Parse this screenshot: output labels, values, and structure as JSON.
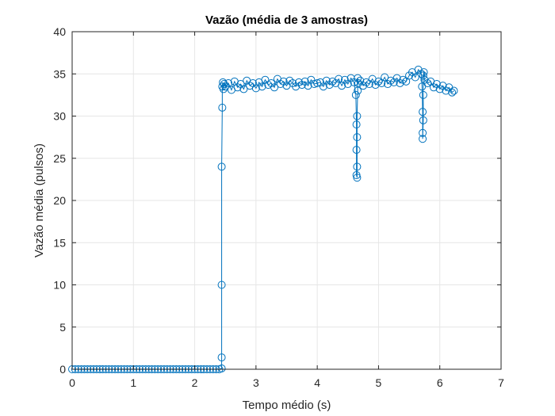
{
  "chart_data": {
    "type": "line",
    "title": "Vazão (média de 3 amostras)",
    "xlabel": "Tempo médio (s)",
    "ylabel": "Vazão média (pulsos)",
    "xlim": [
      0,
      7
    ],
    "ylim": [
      0,
      40
    ],
    "xticks": [
      "0",
      "1",
      "2",
      "3",
      "4",
      "5",
      "6",
      "7"
    ],
    "yticks": [
      "0",
      "5",
      "10",
      "15",
      "20",
      "25",
      "30",
      "35",
      "40"
    ],
    "grid": true,
    "marker": "circle",
    "series_color": "#0072BD",
    "series": [
      {
        "name": "",
        "x": [
          0.0,
          0.05,
          0.1,
          0.15,
          0.2,
          0.25,
          0.3,
          0.35,
          0.4,
          0.45,
          0.5,
          0.55,
          0.6,
          0.65,
          0.7,
          0.75,
          0.8,
          0.85,
          0.9,
          0.95,
          1.0,
          1.05,
          1.1,
          1.15,
          1.2,
          1.25,
          1.3,
          1.35,
          1.4,
          1.45,
          1.5,
          1.55,
          1.6,
          1.65,
          1.7,
          1.75,
          1.8,
          1.85,
          1.9,
          1.95,
          2.0,
          2.05,
          2.1,
          2.15,
          2.2,
          2.25,
          2.3,
          2.35,
          2.4,
          2.44,
          2.44,
          2.44,
          2.44,
          2.45,
          2.45,
          2.46,
          2.47,
          2.48,
          2.5,
          2.55,
          2.6,
          2.65,
          2.7,
          2.75,
          2.8,
          2.85,
          2.9,
          2.95,
          3.0,
          3.05,
          3.1,
          3.15,
          3.2,
          3.25,
          3.3,
          3.35,
          3.4,
          3.45,
          3.5,
          3.55,
          3.6,
          3.65,
          3.7,
          3.75,
          3.8,
          3.85,
          3.9,
          3.95,
          4.0,
          4.05,
          4.1,
          4.15,
          4.2,
          4.25,
          4.3,
          4.35,
          4.4,
          4.45,
          4.5,
          4.55,
          4.6,
          4.63,
          4.64,
          4.64,
          4.64,
          4.65,
          4.65,
          4.65,
          4.65,
          4.66,
          4.66,
          4.67,
          4.7,
          4.75,
          4.8,
          4.85,
          4.9,
          4.95,
          5.0,
          5.05,
          5.1,
          5.15,
          5.2,
          5.25,
          5.3,
          5.35,
          5.4,
          5.45,
          5.5,
          5.55,
          5.6,
          5.65,
          5.7,
          5.71,
          5.72,
          5.72,
          5.72,
          5.73,
          5.73,
          5.73,
          5.74,
          5.75,
          5.8,
          5.85,
          5.9,
          5.95,
          6.0,
          6.05,
          6.1,
          6.15,
          6.2,
          6.23
        ],
        "y": [
          0,
          0,
          0,
          0,
          0,
          0,
          0,
          0,
          0,
          0,
          0,
          0,
          0,
          0,
          0,
          0,
          0,
          0,
          0,
          0,
          0,
          0,
          0,
          0,
          0,
          0,
          0,
          0,
          0,
          0,
          0,
          0,
          0,
          0,
          0,
          0,
          0,
          0,
          0,
          0,
          0,
          0,
          0,
          0,
          0,
          0,
          0,
          0,
          0,
          0.1,
          1.4,
          10.0,
          24.0,
          31.0,
          33.5,
          34.0,
          33.2,
          33.8,
          33.5,
          33.9,
          33.1,
          34.1,
          33.4,
          33.8,
          33.2,
          34.2,
          33.6,
          33.9,
          33.3,
          34.0,
          33.5,
          34.3,
          33.7,
          33.9,
          33.4,
          34.4,
          33.8,
          34.1,
          33.6,
          34.2,
          33.9,
          33.5,
          34.0,
          33.7,
          34.1,
          33.6,
          34.3,
          33.8,
          33.9,
          34.0,
          33.5,
          34.2,
          33.7,
          34.1,
          33.9,
          34.4,
          33.6,
          34.3,
          33.8,
          34.5,
          34.0,
          32.5,
          29.0,
          26.0,
          23.0,
          22.7,
          24.0,
          27.5,
          30.0,
          33.0,
          34.5,
          33.9,
          34.2,
          33.6,
          34.0,
          33.8,
          34.4,
          33.7,
          34.1,
          33.9,
          34.6,
          33.8,
          34.2,
          34.0,
          34.5,
          33.9,
          34.3,
          34.1,
          34.8,
          35.2,
          34.6,
          35.5,
          35.0,
          33.5,
          30.5,
          28.0,
          27.3,
          29.5,
          32.5,
          34.8,
          35.2,
          34.3,
          33.9,
          34.1,
          33.4,
          33.8,
          33.2,
          33.6,
          33.0,
          33.4,
          32.8,
          33.0
        ]
      }
    ]
  }
}
